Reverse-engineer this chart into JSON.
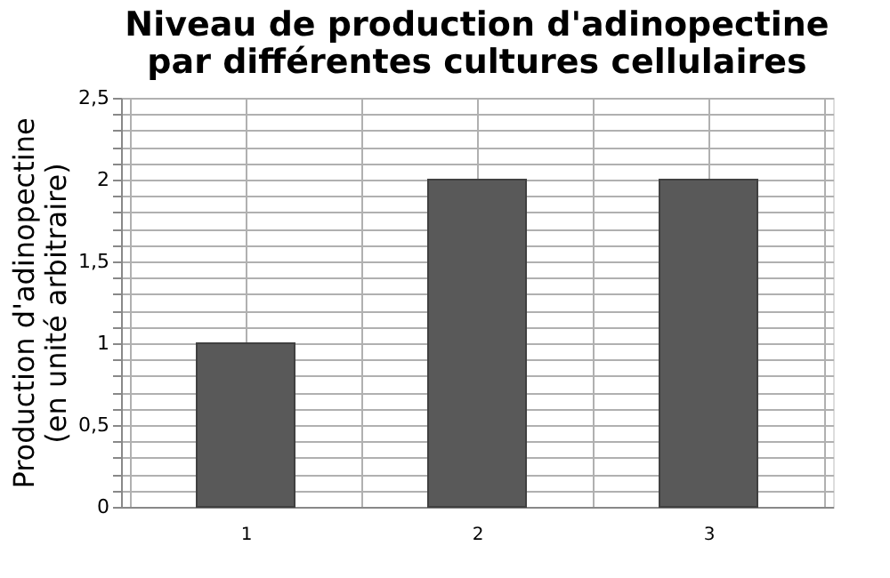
{
  "chart_data": {
    "type": "bar",
    "title": "Niveau de production d'adinopectine\npar différentes cultures cellulaires",
    "ylabel": "Production d'adinopectine\n(en unité arbitraire)",
    "categories": [
      "1",
      "2",
      "3"
    ],
    "values": [
      1,
      2,
      2
    ],
    "color": "#595959",
    "ylim": [
      0,
      2.5
    ],
    "yticks": [
      {
        "value": 0,
        "label": "0"
      },
      {
        "value": 0.1,
        "label": null
      },
      {
        "value": 0.2,
        "label": null
      },
      {
        "value": 0.3,
        "label": null
      },
      {
        "value": 0.4,
        "label": null
      },
      {
        "value": 0.5,
        "label": "0,5"
      },
      {
        "value": 0.6,
        "label": null
      },
      {
        "value": 0.7,
        "label": null
      },
      {
        "value": 0.8,
        "label": null
      },
      {
        "value": 0.9,
        "label": null
      },
      {
        "value": 1,
        "label": "1"
      },
      {
        "value": 1.1,
        "label": null
      },
      {
        "value": 1.2,
        "label": null
      },
      {
        "value": 1.3,
        "label": null
      },
      {
        "value": 1.4,
        "label": null
      },
      {
        "value": 1.5,
        "label": "1,5"
      },
      {
        "value": 1.6,
        "label": null
      },
      {
        "value": 1.7,
        "label": null
      },
      {
        "value": 1.8,
        "label": null
      },
      {
        "value": 1.9,
        "label": null
      },
      {
        "value": 2,
        "label": "2"
      },
      {
        "value": 2.1,
        "label": null
      },
      {
        "value": 2.2,
        "label": null
      },
      {
        "value": 2.3,
        "label": null
      },
      {
        "value": 2.4,
        "label": null
      },
      {
        "value": 2.5,
        "label": "2,5"
      }
    ],
    "grid": true
  }
}
